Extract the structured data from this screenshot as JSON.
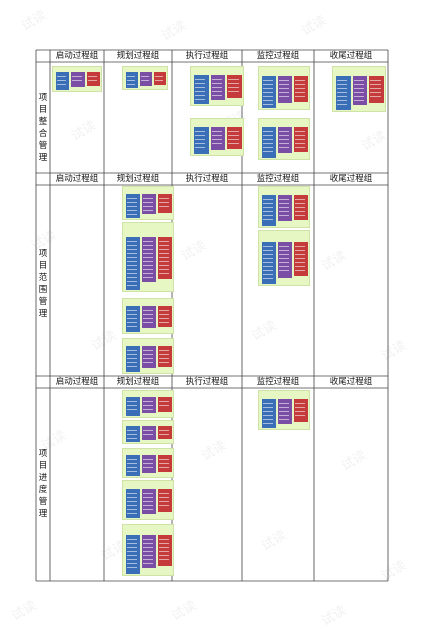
{
  "columns": [
    "启动过程组",
    "规划过程组",
    "执行过程组",
    "监控过程组",
    "收尾过程组"
  ],
  "sections": [
    {
      "label": "项目整合管理",
      "columns": [
        "启动过程组",
        "规划过程组",
        "执行过程组",
        "监控过程组",
        "收尾过程组"
      ]
    },
    {
      "label": "项目范围管理",
      "columns": [
        "启动过程组",
        "规划过程组",
        "执行过程组",
        "监控过程组",
        "收尾过程组"
      ]
    },
    {
      "label": "项目进度管理",
      "columns": [
        "启动过程组",
        "规划过程组",
        "执行过程组",
        "监控过程组",
        "收尾过程组"
      ]
    }
  ],
  "colors": {
    "thumb_bg": "#e6f7c4",
    "block_blue": "#3a6fb7",
    "block_purple": "#7b4ea6",
    "block_red": "#c53b3b",
    "grid_line": "#444444"
  },
  "watermark": "试读"
}
